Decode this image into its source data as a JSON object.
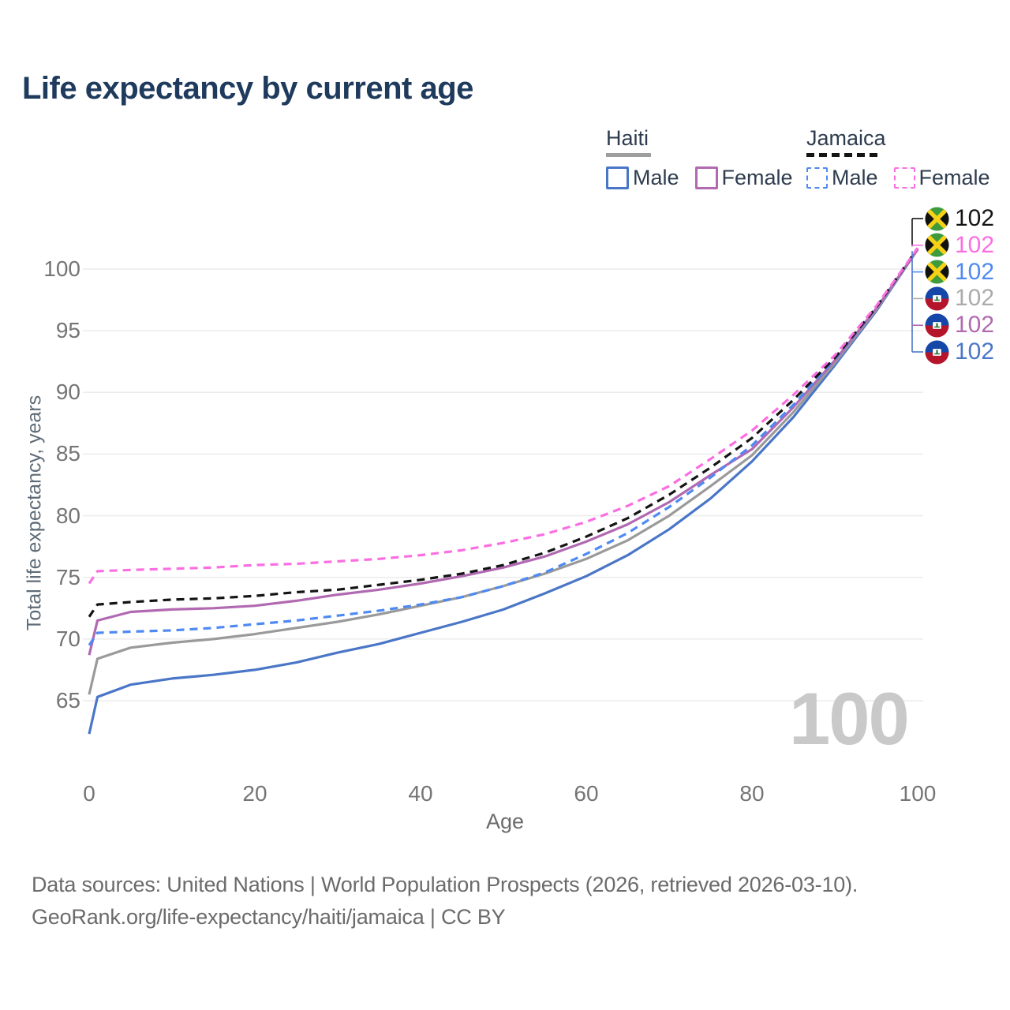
{
  "title": "Life expectancy by current age",
  "legend": {
    "groups": [
      {
        "name": "Haiti",
        "line_style": "solid",
        "underline_color": "#9e9e9e",
        "items": [
          {
            "label": "Male",
            "color": "#4a76c7",
            "dashed": false
          },
          {
            "label": "Female",
            "color": "#b169b1",
            "dashed": false
          }
        ]
      },
      {
        "name": "Jamaica",
        "line_style": "dashed",
        "underline_color": "#141414",
        "items": [
          {
            "label": "Male",
            "color": "#4e8af2",
            "dashed": true
          },
          {
            "label": "Female",
            "color": "#fb6ee2",
            "dashed": true
          }
        ]
      }
    ]
  },
  "chart_data": {
    "type": "line",
    "title": "Life expectancy by current age",
    "xlabel": "Age",
    "ylabel": "Total life expectancy, years",
    "xlim": [
      0,
      100
    ],
    "ylim": [
      60,
      103
    ],
    "x_ticks": [
      0,
      20,
      40,
      60,
      80,
      100
    ],
    "y_ticks": [
      65,
      70,
      75,
      80,
      85,
      90,
      95,
      100
    ],
    "grid": "horizontal",
    "gridline_color": "#ececec",
    "legend_position": "top-right",
    "x": [
      0,
      1,
      5,
      10,
      15,
      20,
      25,
      30,
      35,
      40,
      45,
      50,
      55,
      60,
      65,
      70,
      75,
      80,
      85,
      90,
      95,
      100
    ],
    "series": [
      {
        "name": "Haiti Male",
        "country": "Haiti",
        "sex": "Male",
        "color": "#4a76c7",
        "dashed": false,
        "values": [
          62.3,
          65.3,
          66.3,
          66.8,
          67.1,
          67.5,
          68.1,
          68.9,
          69.6,
          70.5,
          71.4,
          72.4,
          73.7,
          75.1,
          76.8,
          78.9,
          81.4,
          84.4,
          88.0,
          92.2,
          96.6,
          101.6
        ]
      },
      {
        "name": "Haiti Both sexes",
        "country": "Haiti",
        "sex": "Both",
        "color": "#9a9a9a",
        "dashed": false,
        "values": [
          65.5,
          68.4,
          69.3,
          69.7,
          70.0,
          70.4,
          70.9,
          71.4,
          72.0,
          72.7,
          73.4,
          74.3,
          75.3,
          76.5,
          78.0,
          80.0,
          82.4,
          84.9,
          88.4,
          92.4,
          96.7,
          101.6
        ]
      },
      {
        "name": "Haiti Female",
        "country": "Haiti",
        "sex": "Female",
        "color": "#b169b1",
        "dashed": false,
        "values": [
          68.7,
          71.5,
          72.2,
          72.4,
          72.5,
          72.7,
          73.1,
          73.6,
          74.0,
          74.5,
          75.1,
          75.8,
          76.7,
          77.9,
          79.3,
          81.1,
          83.3,
          85.4,
          88.8,
          92.6,
          96.8,
          101.6
        ]
      },
      {
        "name": "Jamaica Male",
        "country": "Jamaica",
        "sex": "Male",
        "color": "#4e8af2",
        "dashed": true,
        "values": [
          69.5,
          70.5,
          70.6,
          70.7,
          70.9,
          71.2,
          71.5,
          71.9,
          72.3,
          72.8,
          73.4,
          74.3,
          75.4,
          76.9,
          78.6,
          80.7,
          83.1,
          85.7,
          89.0,
          92.7,
          96.9,
          101.7
        ]
      },
      {
        "name": "Jamaica Both sexes",
        "country": "Jamaica",
        "sex": "Both",
        "color": "#141414",
        "dashed": true,
        "values": [
          71.8,
          72.8,
          73.0,
          73.2,
          73.3,
          73.5,
          73.8,
          74.0,
          74.4,
          74.8,
          75.3,
          76.0,
          77.0,
          78.3,
          79.8,
          81.7,
          83.9,
          86.3,
          89.4,
          92.8,
          96.9,
          101.7
        ]
      },
      {
        "name": "Jamaica Female",
        "country": "Jamaica",
        "sex": "Female",
        "color": "#fb6ee2",
        "dashed": true,
        "values": [
          74.5,
          75.5,
          75.6,
          75.7,
          75.8,
          76.0,
          76.1,
          76.3,
          76.5,
          76.8,
          77.2,
          77.8,
          78.5,
          79.5,
          80.8,
          82.4,
          84.6,
          86.9,
          89.8,
          93.0,
          97.0,
          101.7
        ]
      }
    ],
    "end_value_labels": [
      102,
      102,
      102,
      102,
      102,
      102
    ],
    "watermark": "100"
  },
  "axes": {
    "y_title": "Total life expectancy, years",
    "x_title": "Age"
  },
  "end_labels": [
    {
      "flag": "jamaica",
      "flag_icon": "jamaica-flag-icon",
      "value": "102",
      "color": "#141414"
    },
    {
      "flag": "jamaica",
      "flag_icon": "jamaica-flag-icon",
      "value": "102",
      "color": "#fb6ee2"
    },
    {
      "flag": "jamaica",
      "flag_icon": "jamaica-flag-icon",
      "value": "102",
      "color": "#4e8af2"
    },
    {
      "flag": "haiti",
      "flag_icon": "haiti-flag-icon",
      "value": "102",
      "color": "#ababab"
    },
    {
      "flag": "haiti",
      "flag_icon": "haiti-flag-icon",
      "value": "102",
      "color": "#b169b1"
    },
    {
      "flag": "haiti",
      "flag_icon": "haiti-flag-icon",
      "value": "102",
      "color": "#4a76c7"
    }
  ],
  "watermark": "100",
  "footer": {
    "line1": "Data sources: United Nations | World Population Prospects (2026, retrieved 2026-03-10).",
    "line2": "GeoRank.org/life-expectancy/haiti/jamaica | CC BY"
  }
}
